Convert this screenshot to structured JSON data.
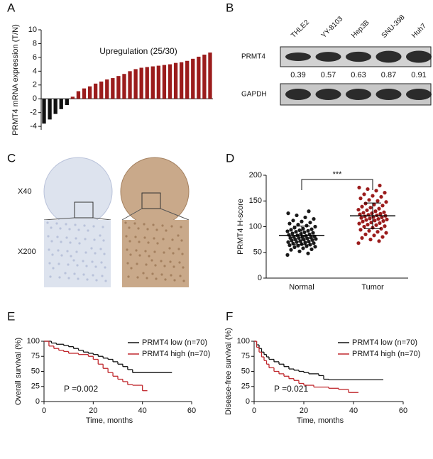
{
  "chart_data": [
    {
      "type": "bar",
      "label": "A",
      "ylabel": "PRMT4 mRNA expression (T/N)",
      "annotation": "Upregulation (25/30)",
      "values": [
        -3.6,
        -3.0,
        -2.2,
        -1.5,
        -0.9,
        0.3,
        1.1,
        1.5,
        1.8,
        2.2,
        2.5,
        2.8,
        3.0,
        3.3,
        3.6,
        4.0,
        4.3,
        4.5,
        4.6,
        4.7,
        4.8,
        4.9,
        5.0,
        5.2,
        5.3,
        5.5,
        5.8,
        6.1,
        6.4,
        6.7
      ],
      "negative_color": "#111111",
      "positive_color": "#9b1c1c",
      "ylim": [
        -4.5,
        10
      ],
      "yticks": [
        -4,
        -2,
        0,
        2,
        4,
        6,
        8,
        10
      ]
    },
    {
      "type": "blot",
      "label": "B",
      "lanes": [
        "THLE2",
        "YY-8103",
        "Hep3B",
        "SNU-398",
        "Huh7"
      ],
      "rows": [
        "PRMT4",
        "GAPDH"
      ],
      "values": [
        0.39,
        0.57,
        0.63,
        0.87,
        0.91
      ]
    },
    {
      "type": "image",
      "label": "C",
      "magnifications": [
        "X40",
        "X200"
      ]
    },
    {
      "type": "strip",
      "label": "D",
      "ylabel": "PRMT4 H-score",
      "annotation": "***",
      "categories": [
        "Normal",
        "Tumor"
      ],
      "values": [
        [
          45,
          48,
          52,
          55,
          56,
          58,
          60,
          61,
          62,
          63,
          64,
          65,
          66,
          67,
          68,
          69,
          70,
          70,
          71,
          72,
          73,
          74,
          75,
          75,
          76,
          77,
          78,
          78,
          79,
          80,
          80,
          81,
          82,
          83,
          84,
          85,
          86,
          87,
          88,
          89,
          90,
          91,
          92,
          93,
          94,
          95,
          96,
          98,
          100,
          102,
          104,
          106,
          108,
          110,
          112,
          115,
          118,
          122,
          126,
          130
        ],
        [
          68,
          72,
          75,
          78,
          80,
          83,
          85,
          88,
          90,
          92,
          94,
          96,
          98,
          100,
          101,
          103,
          104,
          106,
          107,
          108,
          110,
          111,
          112,
          113,
          114,
          115,
          116,
          117,
          118,
          119,
          120,
          121,
          122,
          123,
          124,
          125,
          126,
          127,
          128,
          130,
          132,
          133,
          135,
          137,
          139,
          141,
          143,
          145,
          148,
          150,
          152,
          155,
          158,
          160,
          163,
          166,
          170,
          173,
          176,
          180
        ]
      ],
      "means": [
        83,
        121
      ],
      "sds": [
        18,
        25
      ],
      "colors": [
        "#1a1a1a",
        "#9b1c1c"
      ],
      "ylim": [
        0,
        200
      ],
      "yticks": [
        0,
        50,
        100,
        150,
        200
      ]
    },
    {
      "type": "km",
      "label": "E",
      "ylabel": "Overall survival (%)",
      "xlabel": "Time, months",
      "annotation": "P =0.002",
      "series": [
        {
          "name": "PRMT4 low (n=70)",
          "color": "#111111",
          "x": [
            0,
            3,
            5,
            8,
            10,
            12,
            14,
            16,
            18,
            20,
            22,
            24,
            26,
            28,
            30,
            32,
            34,
            36,
            52
          ],
          "y": [
            100,
            97,
            95,
            93,
            91,
            88,
            85,
            82,
            80,
            78,
            75,
            72,
            70,
            66,
            62,
            58,
            53,
            48,
            48
          ]
        },
        {
          "name": "PRMT4 high (n=70)",
          "color": "#c0282d",
          "x": [
            0,
            2,
            4,
            6,
            8,
            10,
            14,
            18,
            20,
            22,
            24,
            26,
            28,
            30,
            32,
            34,
            36,
            40,
            42
          ],
          "y": [
            100,
            92,
            88,
            85,
            83,
            80,
            78,
            75,
            70,
            62,
            55,
            48,
            42,
            37,
            33,
            28,
            27,
            18,
            18
          ]
        }
      ],
      "xlim": [
        0,
        60
      ],
      "xticks": [
        0,
        20,
        40,
        60
      ],
      "ylim": [
        0,
        100
      ],
      "yticks": [
        0,
        25,
        50,
        75,
        100
      ]
    },
    {
      "type": "km",
      "label": "F",
      "ylabel": "Disease-free survival (%)",
      "xlabel": "Time, months",
      "annotation": "P =0.021",
      "series": [
        {
          "name": "PRMT4 low (n=70)",
          "color": "#111111",
          "x": [
            0,
            1,
            2,
            3,
            4,
            5,
            6,
            8,
            10,
            12,
            14,
            16,
            18,
            20,
            22,
            26,
            28,
            30,
            52
          ],
          "y": [
            100,
            94,
            88,
            82,
            78,
            74,
            70,
            66,
            62,
            58,
            54,
            52,
            50,
            48,
            46,
            43,
            37,
            36,
            36
          ]
        },
        {
          "name": "PRMT4 high (n=70)",
          "color": "#c0282d",
          "x": [
            0,
            1,
            2,
            3,
            4,
            5,
            6,
            8,
            10,
            12,
            14,
            16,
            18,
            20,
            24,
            30,
            34,
            38,
            42
          ],
          "y": [
            100,
            90,
            82,
            74,
            68,
            62,
            56,
            50,
            46,
            42,
            38,
            35,
            30,
            27,
            24,
            22,
            20,
            15,
            15
          ]
        }
      ],
      "xlim": [
        0,
        60
      ],
      "xticks": [
        0,
        20,
        40,
        60
      ],
      "ylim": [
        0,
        100
      ],
      "yticks": [
        0,
        25,
        50,
        75,
        100
      ]
    }
  ]
}
